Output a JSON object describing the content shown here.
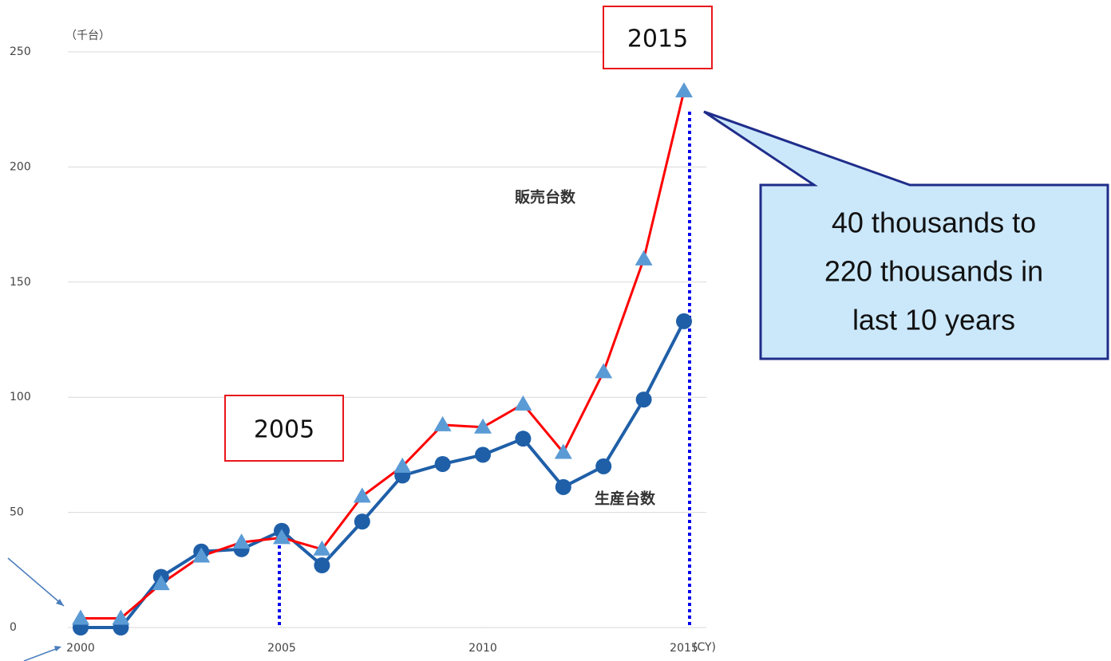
{
  "chart_data": {
    "type": "line",
    "y_unit": "（千台）",
    "x_unit": "(CY)",
    "x": [
      2000,
      2001,
      2002,
      2003,
      2004,
      2005,
      2006,
      2007,
      2008,
      2009,
      2010,
      2011,
      2012,
      2013,
      2014,
      2015
    ],
    "xlim": [
      2000,
      2015
    ],
    "xticks": [
      2000,
      2005,
      2010,
      2015
    ],
    "ylim": [
      0,
      250
    ],
    "yticks": [
      0,
      50,
      100,
      150,
      200,
      250
    ],
    "grid": true,
    "series": [
      {
        "name": "販売台数",
        "color": "#ff0000",
        "marker": "triangle",
        "marker_color": "#5b9bd5",
        "values": [
          4,
          4,
          19,
          31,
          37,
          39,
          34,
          57,
          70,
          88,
          87,
          97,
          76,
          111,
          160,
          233
        ]
      },
      {
        "name": "生産台数",
        "color": "#1f5fa8",
        "marker": "circle",
        "marker_color": "#1f5fa8",
        "values": [
          0,
          0,
          22,
          33,
          34,
          42,
          27,
          46,
          66,
          71,
          75,
          82,
          61,
          70,
          99,
          133
        ]
      }
    ],
    "annotations": [
      {
        "text": "2015"
      },
      {
        "text": "2005"
      }
    ],
    "callout": [
      "40 thousands to",
      "220 thousands in",
      "last 10 years"
    ]
  }
}
